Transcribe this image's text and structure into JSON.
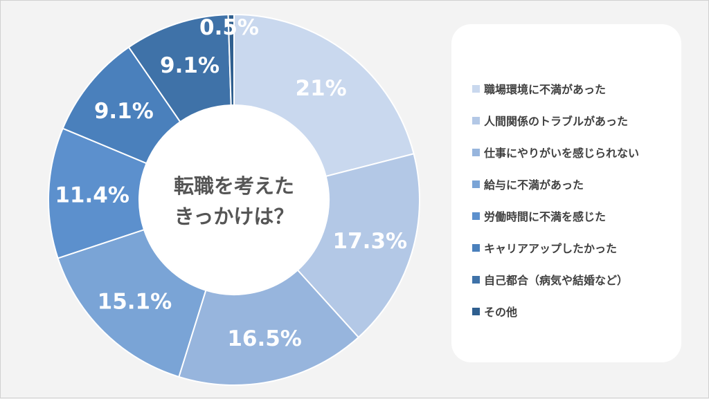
{
  "chart_data": {
    "type": "pie",
    "donut": true,
    "title": "",
    "center_text": [
      "転職を考えた",
      "きっかけは？"
    ],
    "categories": [
      "職場環境に不満があった",
      "人間関係のトラブルがあった",
      "仕事にやりがいを感じられない",
      "給与に不満があった",
      "労働時間に不満を感じた",
      "キャリアアップしたかった",
      "自己都合（病気や結婚など）",
      "その他"
    ],
    "values": [
      21,
      17.3,
      16.5,
      15.1,
      11.4,
      9.1,
      9.1,
      0.5
    ],
    "value_labels": [
      "21%",
      "17.3%",
      "16.5%",
      "15.1%",
      "11.4%",
      "9.1%",
      "9.1%",
      "0.5%"
    ],
    "colors": [
      "#c9d8ee",
      "#b3c8e6",
      "#97b5dd",
      "#7aa4d6",
      "#5c90cd",
      "#4a80bc",
      "#3f72a8",
      "#2f5f8f"
    ],
    "legend_position": "right"
  }
}
